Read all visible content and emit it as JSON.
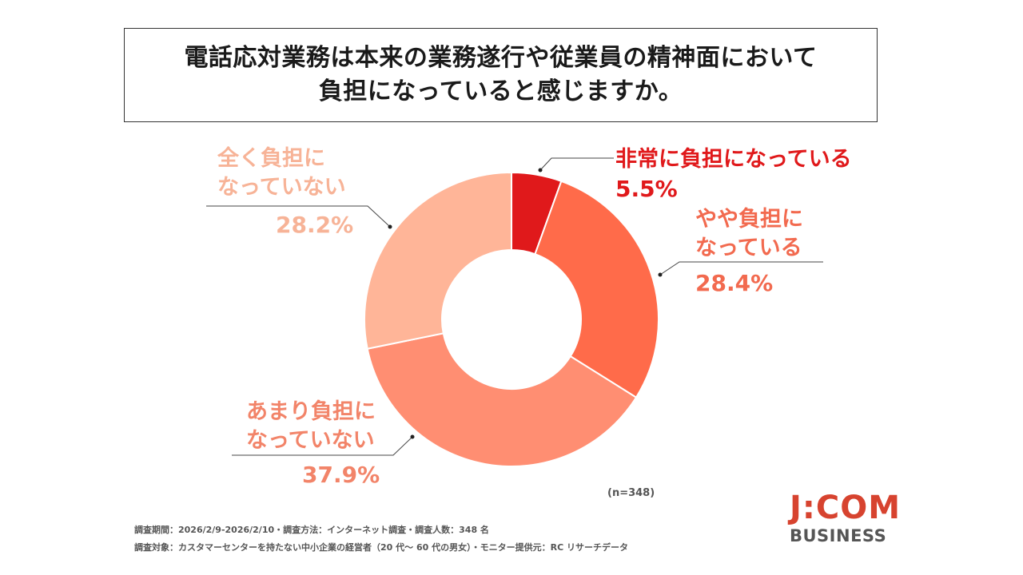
{
  "title": {
    "line1": "電話応対業務は本来の業務遂行や従業員の精神面において",
    "line2": "負担になっていると感じますか。"
  },
  "chart_data": {
    "type": "pie",
    "variant": "donut",
    "slices": [
      {
        "label_lines": [
          "非常に負担になっている"
        ],
        "value": 5.5,
        "pct_text": "5.5%",
        "color": "#e0191b",
        "label_color": "#e0191b"
      },
      {
        "label_lines": [
          "やや負担に",
          "なっている"
        ],
        "value": 28.4,
        "pct_text": "28.4%",
        "color": "#ff6b4a",
        "label_color": "#f26a4f"
      },
      {
        "label_lines": [
          "あまり負担に",
          "なっていない"
        ],
        "value": 37.9,
        "pct_text": "37.9%",
        "color": "#ff8e72",
        "label_color": "#f28469"
      },
      {
        "label_lines": [
          "全く負担に",
          "なっていない"
        ],
        "value": 28.2,
        "pct_text": "28.2%",
        "color": "#ffb598",
        "label_color": "#f7b397"
      }
    ],
    "sample_note": "(n=348)"
  },
  "footer": {
    "line1": "調査期間：2026/2/9-2026/2/10・調査方法：インターネット調査・調査人数：348 名",
    "line2": "調査対象：カスタマーセンターを持たない中小企業の経営者（20 代～ 60 代の男女）・モニター提供元：RC リサーチデータ"
  },
  "logo": {
    "top": "J:COM",
    "bottom": "BUSINESS",
    "color": "#d7432f"
  }
}
